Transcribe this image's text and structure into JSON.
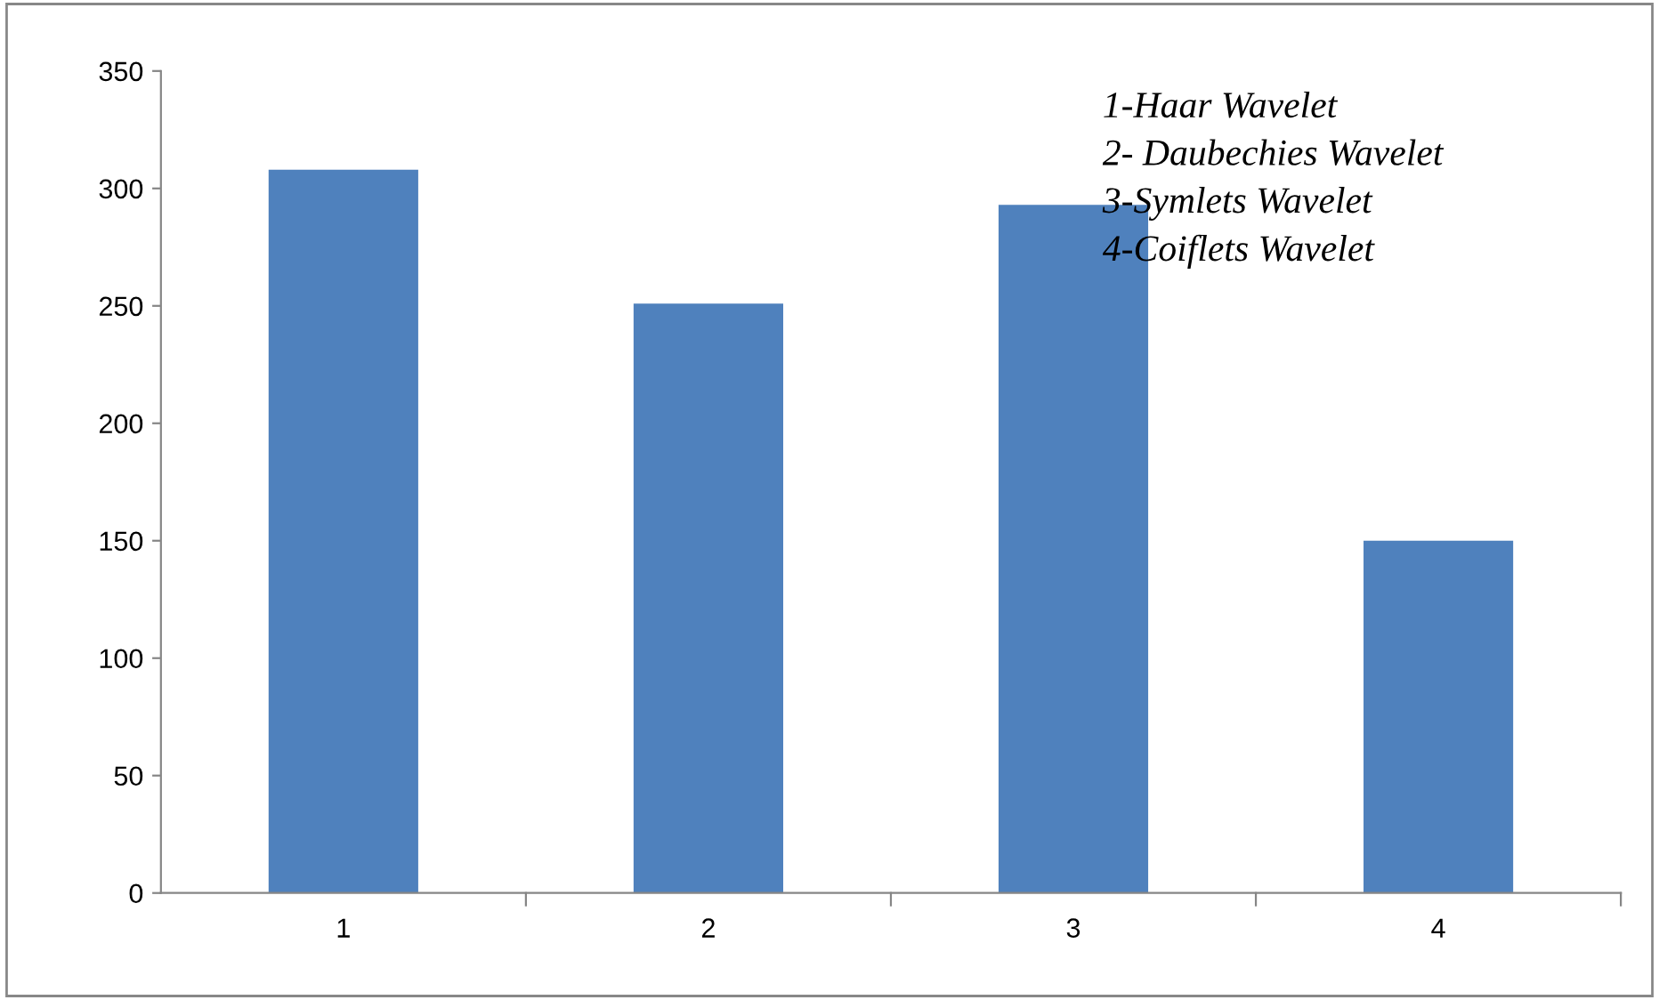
{
  "chart_data": {
    "type": "bar",
    "categories": [
      "1",
      "2",
      "3",
      "4"
    ],
    "values": [
      308,
      251,
      293,
      150
    ],
    "color": "#4f81bd",
    "ylim": [
      0,
      350
    ],
    "yticks": [
      0,
      50,
      100,
      150,
      200,
      250,
      300,
      350
    ],
    "grid": false,
    "annotations": [
      "1-Haar Wavelet",
      "2- Daubechies Wavelet",
      "3-Symlets Wavelet",
      "4-Coiflets Wavelet"
    ]
  }
}
